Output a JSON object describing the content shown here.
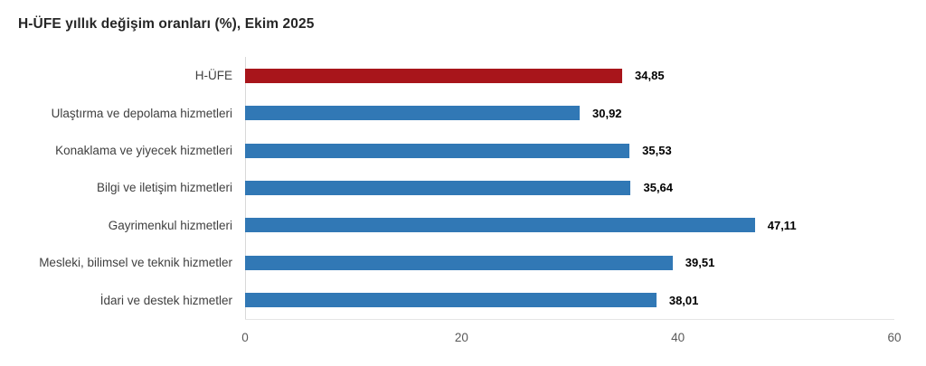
{
  "colors": {
    "highlight_bar": "#a8151b",
    "default_bar": "#3178b5",
    "axis_line": "#d9d9d9",
    "baseline": "#e6e6e6",
    "tick_text": "#595959",
    "category_text": "#404040",
    "value_text": "#000000",
    "title_text": "#262626"
  },
  "chart_data": {
    "type": "bar",
    "orientation": "horizontal",
    "title": "H-ÜFE yıllık değişim oranları (%), Ekim 2025",
    "categories": [
      "H-ÜFE",
      "Ulaştırma ve depolama hizmetleri",
      "Konaklama ve yiyecek hizmetleri",
      "Bilgi ve iletişim hizmetleri",
      "Gayrimenkul hizmetleri",
      "Mesleki, bilimsel ve teknik hizmetler",
      "İdari ve destek hizmetler"
    ],
    "values": [
      34.85,
      30.92,
      35.53,
      35.64,
      47.11,
      39.51,
      38.01
    ],
    "value_labels": [
      "34,85",
      "30,92",
      "35,53",
      "35,64",
      "47,11",
      "39,51",
      "38,01"
    ],
    "bar_color_keys": [
      "highlight_bar",
      "default_bar",
      "default_bar",
      "default_bar",
      "default_bar",
      "default_bar",
      "default_bar"
    ],
    "xlabel": "",
    "ylabel": "",
    "xlim": [
      0,
      60
    ],
    "xticks": [
      "0",
      "20",
      "40",
      "60"
    ],
    "grid": false,
    "legend": "none",
    "value_label_position": "end-of-bar"
  }
}
